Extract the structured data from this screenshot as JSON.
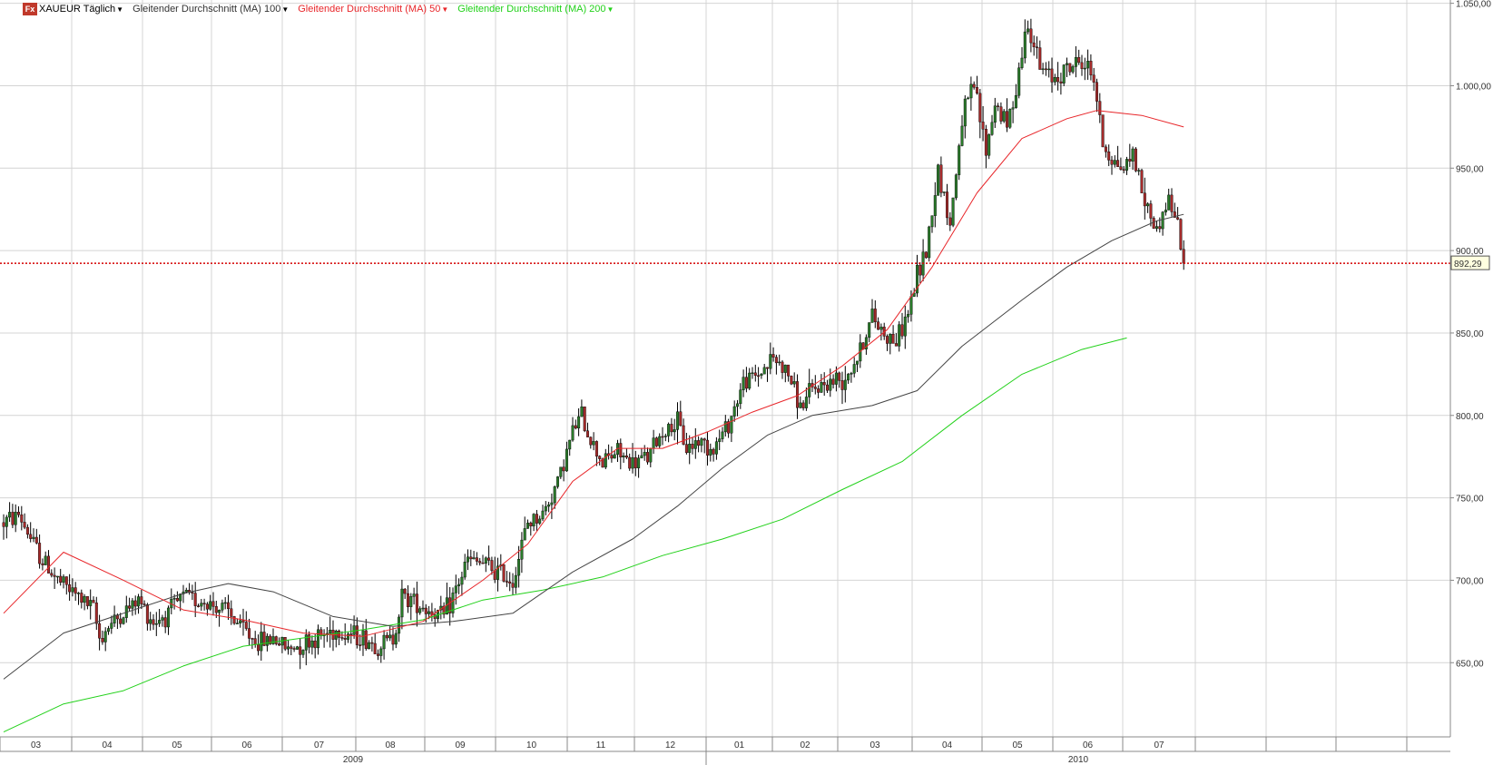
{
  "legend": {
    "symbol_icon": "fx-icon",
    "symbol": "XAUEUR Täglich",
    "ma100": "Gleitender Durchschnitt (MA) 100",
    "ma50": "Gleitender Durchschnitt (MA) 50",
    "ma200": "Gleitender Durchschnitt (MA) 200",
    "colors": {
      "ma100": "#444444",
      "ma50": "#e8262a",
      "ma200": "#22d11a",
      "symbol": "#000000"
    }
  },
  "chart_data": {
    "type": "candlestick",
    "title": "XAUEUR Täglich",
    "grid": true,
    "ylim": [
      605,
      1052
    ],
    "y_ticks": [
      "650,00",
      "700,00",
      "750,00",
      "800,00",
      "850,00",
      "900,00",
      "950,00",
      "1.000,00",
      "1.050,00"
    ],
    "y_tick_values": [
      650,
      700,
      750,
      800,
      850,
      900,
      950,
      1000,
      1050
    ],
    "x_month_labels": [
      "03",
      "04",
      "05",
      "06",
      "07",
      "08",
      "09",
      "10",
      "11",
      "12",
      "01",
      "02",
      "03",
      "04",
      "05",
      "06",
      "07"
    ],
    "x_year_labels": [
      "2009",
      "2010"
    ],
    "last_price": 892.29,
    "last_price_label": "892,29",
    "price_path": [
      [
        0,
        735
      ],
      [
        5,
        740
      ],
      [
        12,
        715
      ],
      [
        18,
        700
      ],
      [
        25,
        690
      ],
      [
        30,
        682
      ],
      [
        32,
        665
      ],
      [
        35,
        672
      ],
      [
        40,
        680
      ],
      [
        45,
        688
      ],
      [
        50,
        675
      ],
      [
        55,
        680
      ],
      [
        60,
        690
      ],
      [
        65,
        688
      ],
      [
        70,
        685
      ],
      [
        75,
        680
      ],
      [
        80,
        670
      ],
      [
        85,
        662
      ],
      [
        90,
        665
      ],
      [
        95,
        658
      ],
      [
        100,
        662
      ],
      [
        105,
        665
      ],
      [
        110,
        670
      ],
      [
        115,
        668
      ],
      [
        120,
        665
      ],
      [
        125,
        660
      ],
      [
        130,
        665
      ],
      [
        133,
        690
      ],
      [
        137,
        688
      ],
      [
        142,
        682
      ],
      [
        147,
        678
      ],
      [
        150,
        690
      ],
      [
        155,
        712
      ],
      [
        160,
        710
      ],
      [
        165,
        705
      ],
      [
        170,
        700
      ],
      [
        175,
        735
      ],
      [
        180,
        740
      ],
      [
        185,
        760
      ],
      [
        190,
        790
      ],
      [
        193,
        800
      ],
      [
        196,
        785
      ],
      [
        200,
        772
      ],
      [
        205,
        778
      ],
      [
        210,
        770
      ],
      [
        215,
        775
      ],
      [
        220,
        790
      ],
      [
        225,
        795
      ],
      [
        228,
        780
      ],
      [
        232,
        785
      ],
      [
        237,
        780
      ],
      [
        242,
        795
      ],
      [
        247,
        820
      ],
      [
        252,
        825
      ],
      [
        257,
        835
      ],
      [
        262,
        825
      ],
      [
        266,
        805
      ],
      [
        270,
        815
      ],
      [
        275,
        820
      ],
      [
        280,
        822
      ],
      [
        285,
        835
      ],
      [
        290,
        860
      ],
      [
        294,
        850
      ],
      [
        298,
        845
      ],
      [
        302,
        862
      ],
      [
        305,
        885
      ],
      [
        308,
        900
      ],
      [
        312,
        950
      ],
      [
        316,
        915
      ],
      [
        320,
        980
      ],
      [
        324,
        1000
      ],
      [
        328,
        960
      ],
      [
        331,
        990
      ],
      [
        335,
        975
      ],
      [
        338,
        1000
      ],
      [
        342,
        1040
      ],
      [
        346,
        1010
      ],
      [
        350,
        1005
      ],
      [
        355,
        1010
      ],
      [
        360,
        1015
      ],
      [
        364,
        1005
      ],
      [
        367,
        965
      ],
      [
        370,
        955
      ],
      [
        374,
        950
      ],
      [
        377,
        960
      ],
      [
        381,
        930
      ],
      [
        385,
        912
      ],
      [
        389,
        932
      ],
      [
        392,
        915
      ],
      [
        394,
        892.29
      ]
    ],
    "ma50": [
      [
        0,
        680
      ],
      [
        20,
        717
      ],
      [
        40,
        700
      ],
      [
        60,
        682
      ],
      [
        80,
        676
      ],
      [
        100,
        668
      ],
      [
        120,
        666
      ],
      [
        140,
        675
      ],
      [
        160,
        700
      ],
      [
        175,
        722
      ],
      [
        190,
        760
      ],
      [
        205,
        780
      ],
      [
        220,
        780
      ],
      [
        235,
        790
      ],
      [
        250,
        802
      ],
      [
        265,
        812
      ],
      [
        280,
        830
      ],
      [
        295,
        852
      ],
      [
        310,
        890
      ],
      [
        325,
        935
      ],
      [
        340,
        968
      ],
      [
        355,
        980
      ],
      [
        365,
        985
      ],
      [
        380,
        982
      ],
      [
        394,
        975
      ]
    ],
    "ma100": [
      [
        0,
        640
      ],
      [
        20,
        668
      ],
      [
        40,
        680
      ],
      [
        60,
        692
      ],
      [
        75,
        698
      ],
      [
        90,
        693
      ],
      [
        110,
        678
      ],
      [
        130,
        672
      ],
      [
        150,
        675
      ],
      [
        170,
        680
      ],
      [
        190,
        705
      ],
      [
        210,
        725
      ],
      [
        225,
        745
      ],
      [
        240,
        768
      ],
      [
        255,
        788
      ],
      [
        270,
        800
      ],
      [
        290,
        806
      ],
      [
        305,
        815
      ],
      [
        320,
        842
      ],
      [
        340,
        870
      ],
      [
        355,
        890
      ],
      [
        370,
        906
      ],
      [
        385,
        918
      ],
      [
        394,
        922
      ]
    ],
    "ma200": [
      [
        0,
        608
      ],
      [
        20,
        625
      ],
      [
        40,
        633
      ],
      [
        60,
        648
      ],
      [
        80,
        660
      ],
      [
        100,
        665
      ],
      [
        120,
        670
      ],
      [
        140,
        676
      ],
      [
        160,
        688
      ],
      [
        180,
        694
      ],
      [
        200,
        702
      ],
      [
        220,
        715
      ],
      [
        240,
        725
      ],
      [
        260,
        737
      ],
      [
        280,
        755
      ],
      [
        300,
        772
      ],
      [
        320,
        800
      ],
      [
        340,
        825
      ],
      [
        360,
        840
      ],
      [
        375,
        847
      ]
    ]
  }
}
